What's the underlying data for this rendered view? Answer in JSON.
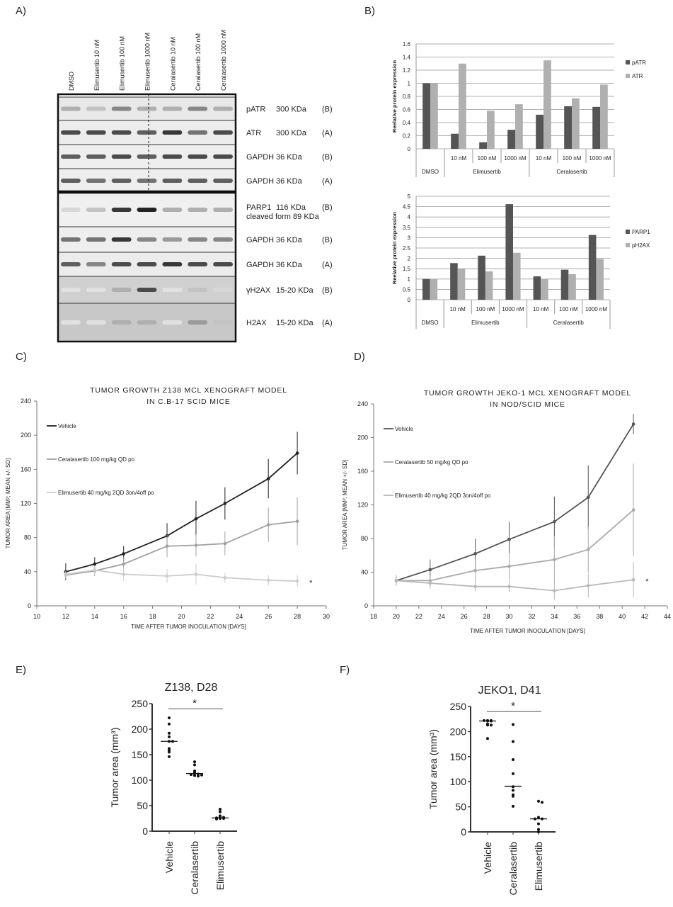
{
  "panels": {
    "a": "A)",
    "b": "B)",
    "c": "C)",
    "d": "D)",
    "e": "E)",
    "f": "F)"
  },
  "blot": {
    "lanes": [
      "DMSO",
      "Elimusertib  10 nM",
      "Elimusertib  100 nM",
      "Elimusertib  1000 nM",
      "Ceralasertib  10 nM",
      "Ceralasertib  100 nM",
      "Ceralasertib  1000  nM"
    ],
    "rows": [
      {
        "protein": "pATR",
        "size": "300 KDa",
        "ab": "(B)"
      },
      {
        "protein": "ATR",
        "size": "300 KDa",
        "ab": "(A)"
      },
      {
        "protein": "GAPDH",
        "size": "36 KDa",
        "ab": "(B)"
      },
      {
        "protein": "GAPDH",
        "size": "36 KDa",
        "ab": "(A)"
      },
      {
        "protein": "PARP1",
        "size": "116 KDa",
        "size2": "cleaved form 89 KDa",
        "ab": "(B)"
      },
      {
        "protein": "GAPDH",
        "size": "36 KDa",
        "ab": "(B)"
      },
      {
        "protein": "GAPDH",
        "size": "36 KDa",
        "ab": "(A)"
      },
      {
        "protein": "γH2AX",
        "size": "15-20 KDa",
        "ab": "(B)"
      },
      {
        "protein": "H2AX",
        "size": "15-20 KDa",
        "ab": "(A)"
      }
    ]
  },
  "chart_data": [
    {
      "id": "b1",
      "type": "bar",
      "ylabel": "Reelative protein expression",
      "ylim": [
        0,
        1.6
      ],
      "yticks": [
        "0",
        "0.2",
        "0.4",
        "0.6",
        "0.8",
        "1",
        "1.2",
        "1.4",
        "1.6"
      ],
      "categories": [
        "",
        "10 nM",
        "100 nM",
        "1000 nM",
        "10 nM",
        "100 nM",
        "1000 nM"
      ],
      "groups": [
        "DMSO",
        "Elimusertib",
        "Ceralasertib"
      ],
      "legend": "right",
      "grid": true,
      "series": [
        {
          "name": "pATR",
          "color": "#555555",
          "values": [
            1,
            0.23,
            0.1,
            0.29,
            0.52,
            0.65,
            0.64
          ]
        },
        {
          "name": "ATR",
          "color": "#b0b0b0",
          "values": [
            1,
            1.3,
            0.58,
            0.68,
            1.35,
            0.77,
            0.98
          ]
        }
      ]
    },
    {
      "id": "b2",
      "type": "bar",
      "ylabel": "Reelative protein expression",
      "ylim": [
        0,
        5
      ],
      "yticks": [
        "0",
        "0.5",
        "1",
        "1.5",
        "2",
        "2.5",
        "3",
        "3.5",
        "4",
        "4.5",
        "5"
      ],
      "categories": [
        "",
        "10 nM",
        "100 nM",
        "1000 nM",
        "10 nM",
        "100 nM",
        "1000 nM"
      ],
      "groups": [
        "DMSO",
        "Elimusertib",
        "Ceralasertib"
      ],
      "legend": "right",
      "grid": true,
      "series": [
        {
          "name": "PARP1",
          "color": "#555555",
          "values": [
            1,
            1.77,
            2.13,
            4.62,
            1.13,
            1.45,
            3.13
          ]
        },
        {
          "name": "pH2AX",
          "color": "#b0b0b0",
          "values": [
            1,
            1.5,
            1.37,
            2.27,
            1,
            1.24,
            1.97
          ]
        }
      ]
    },
    {
      "id": "c",
      "type": "line",
      "title": [
        "TUMOR GROWTH Z138 MCL XENOGRAFT MODEL",
        "IN C.B-17 SCID MICE"
      ],
      "xlabel": "TIME AFTER TUMOR INOCULATION [DAYS]",
      "ylabel": "TUMOR AREA [MM²; MEAN +/- SD]",
      "xlim": [
        10,
        30
      ],
      "ylim": [
        0,
        240
      ],
      "xticks": [
        10,
        12,
        14,
        16,
        18,
        20,
        22,
        24,
        26,
        28,
        30
      ],
      "yticks": [
        0,
        40,
        80,
        120,
        160,
        200,
        240
      ],
      "legend": "top-left",
      "annotation": "*",
      "series": [
        {
          "name": "Vehicle",
          "color": "#222222",
          "x": [
            12,
            14,
            16,
            19,
            21,
            23,
            26,
            28
          ],
          "y": [
            40,
            49,
            61,
            82,
            102,
            120,
            149,
            179
          ],
          "sd": [
            10,
            8,
            9,
            15,
            21,
            19,
            23,
            25
          ]
        },
        {
          "name": "Ceralasertib 100 mg/kg QD po",
          "color": "#a0a0a0",
          "x": [
            12,
            14,
            16,
            19,
            21,
            23,
            26,
            28
          ],
          "y": [
            36,
            41,
            49,
            70,
            71,
            73,
            95,
            99
          ],
          "sd": [
            4,
            6,
            8,
            13,
            13,
            14,
            20,
            28
          ]
        },
        {
          "name": "Elimusertib 40 mg/kg 2QD 3on/4off po",
          "color": "#cccccc",
          "x": [
            12,
            14,
            16,
            19,
            21,
            23,
            26,
            28
          ],
          "y": [
            37,
            42,
            37,
            35,
            37,
            33,
            30,
            29
          ],
          "sd": [
            4,
            5,
            8,
            8,
            12,
            6,
            6,
            7
          ]
        }
      ]
    },
    {
      "id": "d",
      "type": "line",
      "title": [
        "TUMOR GROWTH JEKO-1 MCL XENOGRAFT MODEL",
        "IN NOD/SCID MICE"
      ],
      "xlabel": "TIME AFTER TUMOR INOCULATION [DAYS]",
      "ylabel": "TUMOR AREA [MM²; MEAN +/- SD]",
      "xlim": [
        18,
        44
      ],
      "ylim": [
        0,
        240
      ],
      "xticks": [
        18,
        20,
        22,
        24,
        26,
        28,
        30,
        32,
        34,
        36,
        38,
        40,
        42,
        44
      ],
      "yticks": [
        0,
        40,
        80,
        120,
        160,
        200,
        240
      ],
      "legend": "top-left",
      "annotation": "*",
      "series": [
        {
          "name": "Vehicle",
          "color": "#555555",
          "x": [
            20,
            23,
            27,
            30,
            34,
            37,
            41
          ],
          "y": [
            30,
            43,
            62,
            79,
            100,
            129,
            216
          ],
          "sd": [
            6,
            12,
            18,
            21,
            30,
            38,
            12
          ]
        },
        {
          "name": "Ceralasertib 50 mg/kg QD po",
          "color": "#aaaaaa",
          "x": [
            20,
            23,
            27,
            30,
            34,
            37,
            41
          ],
          "y": [
            30,
            30,
            42,
            47,
            55,
            67,
            114
          ],
          "sd": [
            6,
            7,
            13,
            16,
            28,
            28,
            55
          ]
        },
        {
          "name": "Elimusertib  40 mg/kg 2QD 3on/4off po",
          "color": "#b8b8b8",
          "x": [
            20,
            23,
            27,
            30,
            34,
            37,
            41
          ],
          "y": [
            30,
            27,
            23,
            23,
            18,
            24,
            31
          ],
          "sd": [
            6,
            7,
            6,
            7,
            11,
            14,
            21
          ]
        }
      ]
    },
    {
      "id": "e",
      "type": "scatter",
      "title": "Z138, D28",
      "ylabel": "Tumor area (mm³)",
      "ylim": [
        0,
        250
      ],
      "yticks": [
        0,
        50,
        100,
        150,
        200,
        250
      ],
      "categories": [
        "Vehicle",
        "Ceralasertib",
        "Elimusertib"
      ],
      "annotation": "*",
      "points": [
        [
          222,
          210,
          192,
          185,
          176,
          176,
          162,
          158,
          155,
          146
        ],
        [
          136,
          130,
          118,
          116,
          113,
          112,
          111,
          110,
          109,
          108
        ],
        [
          43,
          38,
          30,
          28,
          27,
          26,
          25,
          25,
          24
        ]
      ],
      "medians": [
        176,
        113,
        26
      ]
    },
    {
      "id": "f",
      "type": "scatter",
      "title": "JEKO1, D41",
      "ylabel": "Tumor area (mm³)",
      "ylim": [
        0,
        250
      ],
      "yticks": [
        0,
        50,
        100,
        150,
        200,
        250
      ],
      "categories": [
        "Vehicle",
        "Ceralasertib",
        "Elimusertib"
      ],
      "annotation": "*",
      "points": [
        [
          222,
          222,
          221,
          221,
          222,
          215,
          213,
          213,
          186
        ],
        [
          214,
          180,
          144,
          116,
          90,
          83,
          74,
          71,
          51
        ],
        [
          61,
          59,
          29,
          26,
          26,
          16,
          5,
          0
        ]
      ],
      "medians": [
        221,
        91,
        26
      ]
    }
  ]
}
